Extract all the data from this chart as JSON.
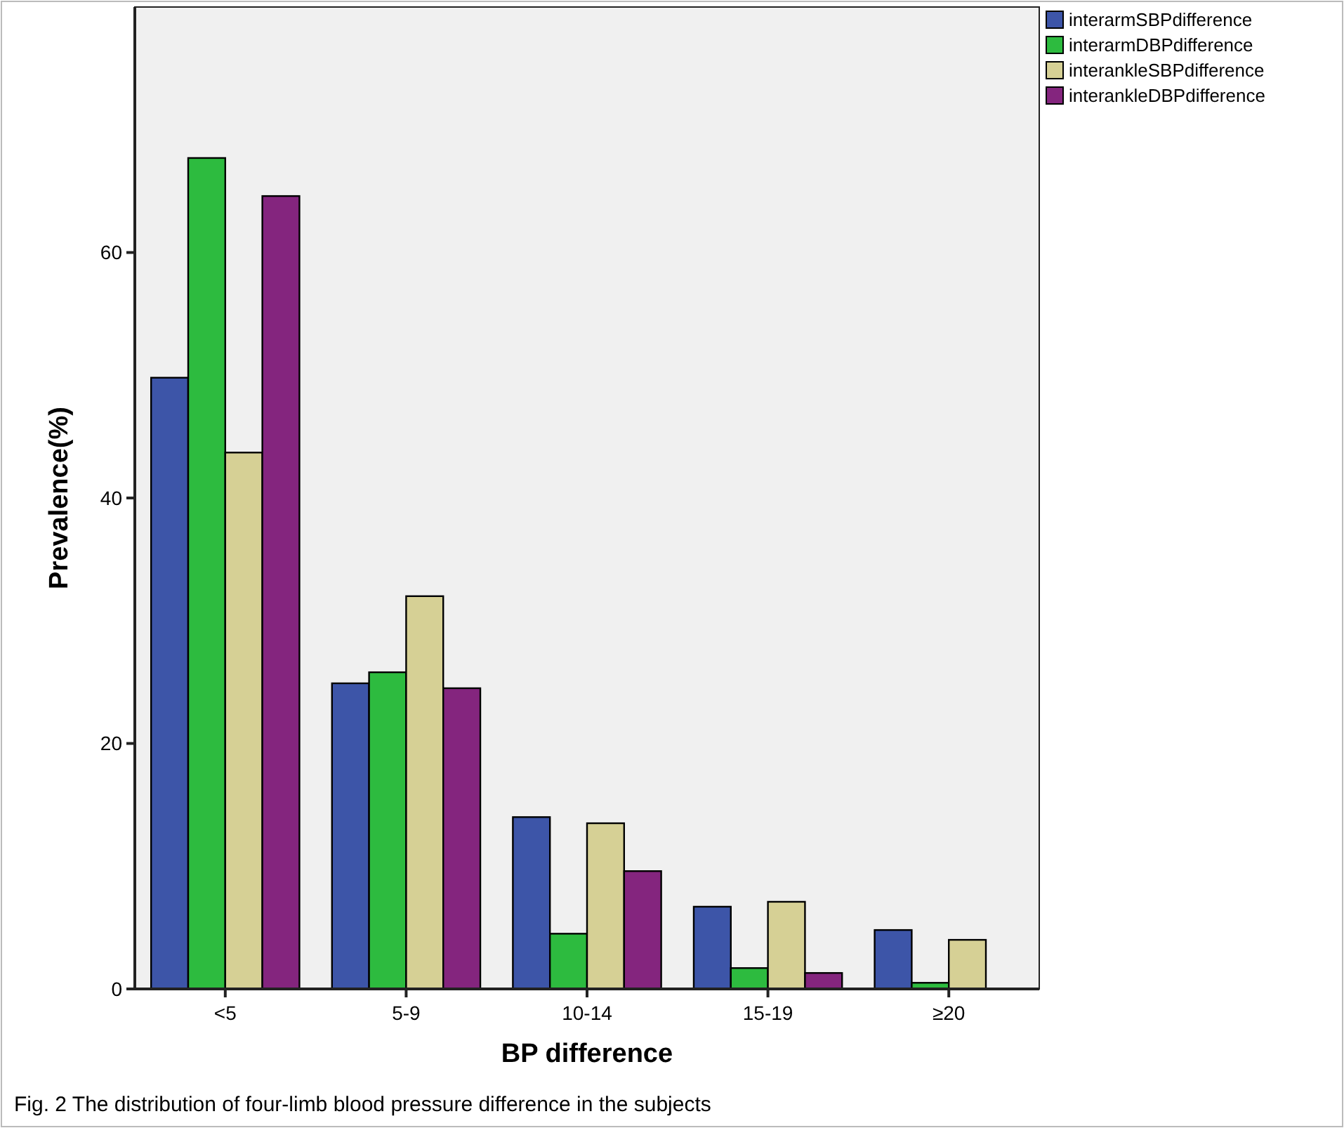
{
  "chart_data": {
    "type": "bar",
    "xlabel": "BP difference",
    "ylabel": "Prevalence(%)",
    "categories": [
      "<5",
      "5-9",
      "10-14",
      "15-19",
      "≥20"
    ],
    "series": [
      {
        "name": "interarmSBPdifference",
        "color": "#3d55a8",
        "values": [
          49.8,
          24.9,
          14.0,
          6.7,
          4.8
        ]
      },
      {
        "name": "interarmDBPdifference",
        "color": "#2dbb3f",
        "values": [
          67.7,
          25.8,
          4.5,
          1.7,
          0.5
        ]
      },
      {
        "name": "interankleSBPdifference",
        "color": "#d6d095",
        "values": [
          43.7,
          32.0,
          13.5,
          7.1,
          4.0
        ]
      },
      {
        "name": "interankleDBPdifference",
        "color": "#84257e",
        "values": [
          64.6,
          24.5,
          9.6,
          1.3,
          0
        ]
      }
    ],
    "ylim": [
      0,
      80
    ],
    "yticks": [
      0,
      20,
      40,
      60
    ],
    "grid": false,
    "legend": "top right",
    "annotations": [
      "Fig. 2  The distribution of four-limb blood pressure difference in the subjects"
    ]
  }
}
